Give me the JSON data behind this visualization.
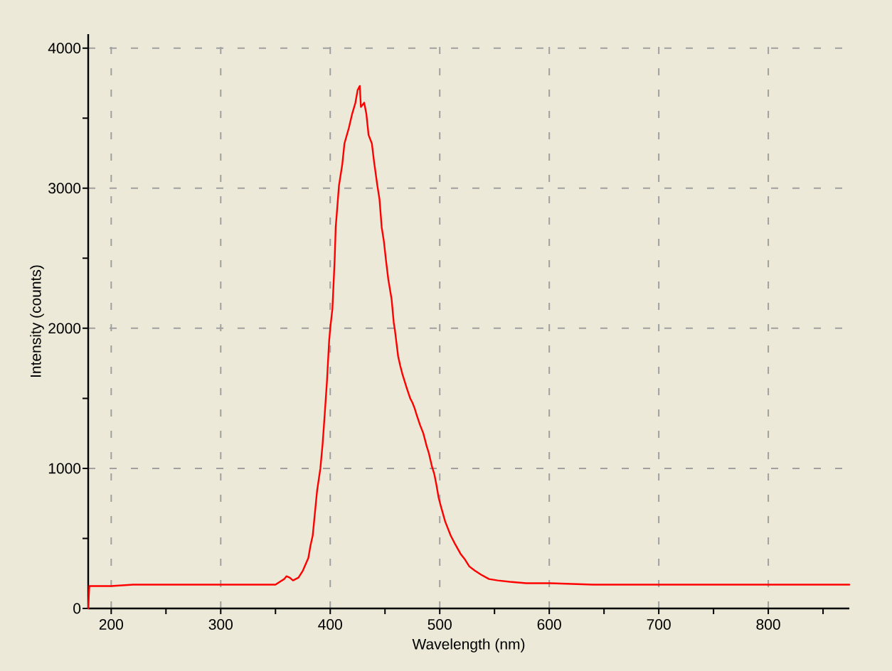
{
  "chart_data": {
    "type": "line",
    "xlabel": "Wavelength (nm)",
    "ylabel": "Intensity (counts)",
    "x": [
      179,
      180,
      190,
      200,
      220,
      250,
      280,
      300,
      330,
      350,
      354,
      358,
      360,
      363,
      366,
      371,
      375,
      380,
      382,
      384,
      386,
      388,
      391,
      393,
      395,
      397,
      399,
      400,
      402,
      404,
      405,
      407,
      408,
      411,
      413,
      417,
      420,
      423,
      425,
      427,
      428,
      431,
      433,
      435,
      438,
      440,
      443,
      445,
      447,
      449,
      451,
      453,
      456,
      458,
      459,
      462,
      464,
      466,
      470,
      473,
      475,
      477,
      479,
      482,
      485,
      488,
      490,
      493,
      495,
      497,
      499,
      501,
      505,
      510,
      514,
      519,
      523,
      527,
      532,
      538,
      545,
      553,
      564,
      579,
      601,
      640,
      705,
      770,
      835,
      874
    ],
    "series": [
      {
        "color": "#ff0000",
        "values": [
          0,
          160,
          160,
          160,
          170,
          170,
          170,
          170,
          170,
          170,
          190,
          210,
          230,
          220,
          200,
          220,
          270,
          360,
          450,
          520,
          680,
          840,
          1000,
          1170,
          1390,
          1620,
          1910,
          2000,
          2140,
          2480,
          2720,
          2920,
          3020,
          3170,
          3320,
          3430,
          3530,
          3610,
          3700,
          3730,
          3580,
          3610,
          3530,
          3380,
          3320,
          3190,
          3020,
          2920,
          2720,
          2620,
          2480,
          2350,
          2210,
          2040,
          1990,
          1800,
          1730,
          1670,
          1570,
          1500,
          1470,
          1430,
          1380,
          1310,
          1250,
          1160,
          1110,
          1010,
          960,
          880,
          790,
          730,
          620,
          520,
          460,
          390,
          350,
          300,
          270,
          240,
          210,
          200,
          190,
          180,
          180,
          170,
          170,
          170,
          170,
          170
        ]
      }
    ],
    "xlim": [
      179,
      874
    ],
    "ylim": [
      0,
      4100
    ],
    "xticks": [
      200,
      {
        "value": 250,
        "label": null
      },
      300,
      {
        "value": 350,
        "label": null
      },
      400,
      {
        "value": 450,
        "label": null
      },
      500,
      {
        "value": 550,
        "label": null
      },
      600,
      {
        "value": 650,
        "label": null
      },
      700,
      {
        "value": 750,
        "label": null
      },
      800,
      {
        "value": 850,
        "label": null
      }
    ],
    "yticks": [
      0,
      {
        "value": 500,
        "label": null
      },
      1000,
      {
        "value": 1500,
        "label": null
      },
      2000,
      {
        "value": 2500,
        "label": null
      },
      3000,
      {
        "value": 3500,
        "label": null
      },
      4000
    ],
    "grid": true,
    "marker": "none",
    "line_style": "solid"
  }
}
